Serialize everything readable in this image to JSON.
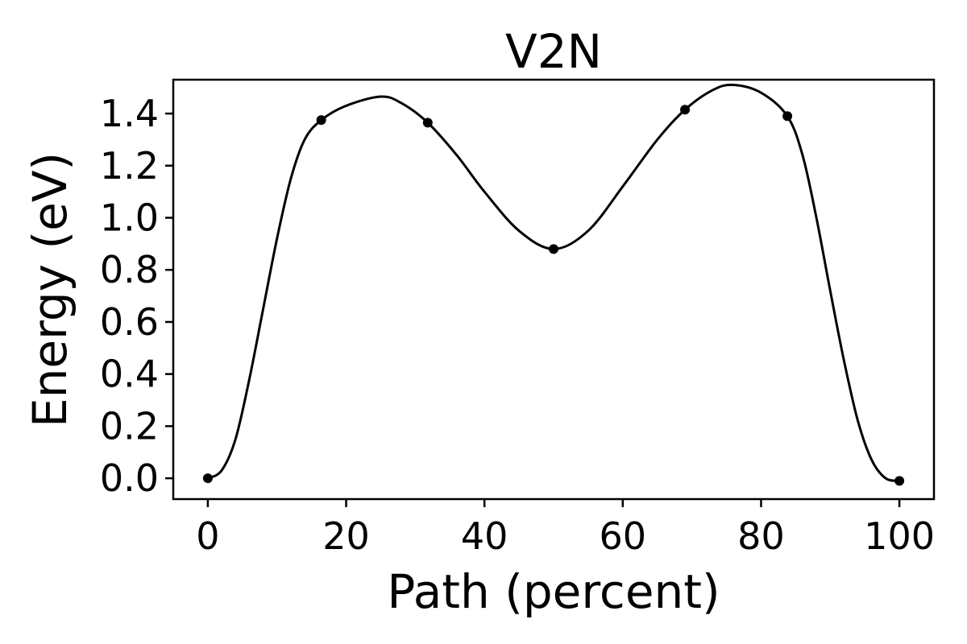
{
  "chart_data": {
    "type": "line",
    "title": "V2N",
    "xlabel": "Path (percent)",
    "ylabel": "Energy (eV)",
    "xlim": [
      -5,
      105
    ],
    "ylim": [
      -0.08,
      1.53
    ],
    "xticks": [
      0,
      20,
      40,
      60,
      80,
      100
    ],
    "xtick_labels": [
      "0",
      "20",
      "40",
      "60",
      "80",
      "100"
    ],
    "yticks": [
      0.0,
      0.2,
      0.4,
      0.6,
      0.8,
      1.0,
      1.2,
      1.4
    ],
    "ytick_labels": [
      "0.0",
      "0.2",
      "0.4",
      "0.6",
      "0.8",
      "1.0",
      "1.2",
      "1.4"
    ],
    "grid": false,
    "legend": "none",
    "line_color": "#000000",
    "marker_color": "#000000",
    "series": [
      {
        "points": [
          {
            "x": 0,
            "y": 0.0
          },
          {
            "x": 16.4,
            "y": 1.375
          },
          {
            "x": 31.8,
            "y": 1.365
          },
          {
            "x": 50.0,
            "y": 0.88
          },
          {
            "x": 69.0,
            "y": 1.415
          },
          {
            "x": 83.8,
            "y": 1.39
          },
          {
            "x": 100.0,
            "y": -0.01
          }
        ],
        "curve": [
          {
            "x": 0,
            "y": 0.0
          },
          {
            "x": 2,
            "y": 0.03
          },
          {
            "x": 4,
            "y": 0.15
          },
          {
            "x": 6,
            "y": 0.38
          },
          {
            "x": 8,
            "y": 0.65
          },
          {
            "x": 10,
            "y": 0.92
          },
          {
            "x": 12,
            "y": 1.15
          },
          {
            "x": 14,
            "y": 1.3
          },
          {
            "x": 16.4,
            "y": 1.375
          },
          {
            "x": 20,
            "y": 1.43
          },
          {
            "x": 25,
            "y": 1.465
          },
          {
            "x": 28,
            "y": 1.44
          },
          {
            "x": 31.8,
            "y": 1.365
          },
          {
            "x": 36,
            "y": 1.24
          },
          {
            "x": 40,
            "y": 1.1
          },
          {
            "x": 45,
            "y": 0.95
          },
          {
            "x": 50,
            "y": 0.88
          },
          {
            "x": 55,
            "y": 0.95
          },
          {
            "x": 60,
            "y": 1.12
          },
          {
            "x": 65,
            "y": 1.3
          },
          {
            "x": 69,
            "y": 1.415
          },
          {
            "x": 73,
            "y": 1.49
          },
          {
            "x": 76,
            "y": 1.51
          },
          {
            "x": 80,
            "y": 1.48
          },
          {
            "x": 83.8,
            "y": 1.39
          },
          {
            "x": 86,
            "y": 1.24
          },
          {
            "x": 88,
            "y": 1.0
          },
          {
            "x": 90,
            "y": 0.72
          },
          {
            "x": 92,
            "y": 0.45
          },
          {
            "x": 94,
            "y": 0.22
          },
          {
            "x": 96,
            "y": 0.07
          },
          {
            "x": 98,
            "y": 0.0
          },
          {
            "x": 100,
            "y": -0.01
          }
        ]
      }
    ]
  }
}
